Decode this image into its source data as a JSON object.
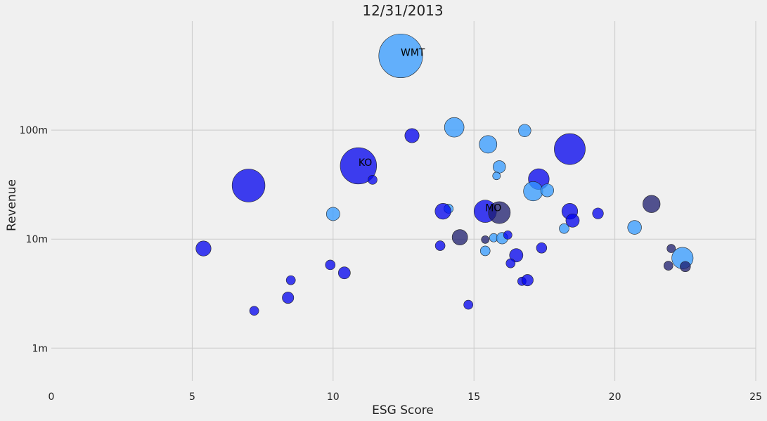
{
  "chart_data": {
    "type": "scatter",
    "title": "12/31/2013",
    "xlabel": "ESG Score",
    "ylabel": "Revenue",
    "xlim": [
      0,
      25
    ],
    "ylim": [
      500000,
      1000000000
    ],
    "y_scale": "log",
    "grid": true,
    "x_ticks": [
      0,
      5,
      10,
      15,
      20,
      25
    ],
    "x_tick_labels": [
      "0",
      "5",
      "10",
      "15",
      "20",
      "25"
    ],
    "y_ticks": [
      1000000,
      10000000,
      100000000
    ],
    "y_tick_labels": [
      "1m",
      "10m",
      "100m"
    ],
    "colors": {
      "light": "#3399ff",
      "blue": "#0000ee",
      "dark": "#1c1c6e",
      "grid": "#cbcbcb",
      "background": "#f0f0f0"
    },
    "points": [
      {
        "x": 12.4,
        "y": 480000000,
        "size": 1600,
        "color": "light",
        "label": "WMT"
      },
      {
        "x": 10.9,
        "y": 47000000,
        "size": 1100,
        "color": "blue",
        "label": "KO"
      },
      {
        "x": 15.4,
        "y": 18000000,
        "size": 420,
        "color": "blue",
        "label": "MO"
      },
      {
        "x": 7.0,
        "y": 31000000,
        "size": 900,
        "color": "blue"
      },
      {
        "x": 18.4,
        "y": 67000000,
        "size": 800,
        "color": "blue"
      },
      {
        "x": 14.3,
        "y": 106000000,
        "size": 320,
        "color": "light"
      },
      {
        "x": 15.5,
        "y": 74000000,
        "size": 260,
        "color": "light"
      },
      {
        "x": 16.8,
        "y": 99000000,
        "size": 130,
        "color": "light"
      },
      {
        "x": 12.8,
        "y": 89000000,
        "size": 170,
        "color": "blue"
      },
      {
        "x": 15.9,
        "y": 46000000,
        "size": 130,
        "color": "light"
      },
      {
        "x": 15.8,
        "y": 38000000,
        "size": 50,
        "color": "light"
      },
      {
        "x": 11.4,
        "y": 35000000,
        "size": 70,
        "color": "blue"
      },
      {
        "x": 17.3,
        "y": 35500000,
        "size": 360,
        "color": "blue"
      },
      {
        "x": 17.1,
        "y": 27500000,
        "size": 310,
        "color": "light"
      },
      {
        "x": 17.6,
        "y": 28000000,
        "size": 140,
        "color": "light"
      },
      {
        "x": 21.3,
        "y": 21000000,
        "size": 250,
        "color": "dark"
      },
      {
        "x": 14.1,
        "y": 19000000,
        "size": 70,
        "color": "light"
      },
      {
        "x": 13.9,
        "y": 18000000,
        "size": 210,
        "color": "blue"
      },
      {
        "x": 10.0,
        "y": 17000000,
        "size": 150,
        "color": "light"
      },
      {
        "x": 15.9,
        "y": 17500000,
        "size": 400,
        "color": "dark"
      },
      {
        "x": 18.4,
        "y": 18000000,
        "size": 210,
        "color": "blue"
      },
      {
        "x": 19.4,
        "y": 17200000,
        "size": 100,
        "color": "blue"
      },
      {
        "x": 18.5,
        "y": 14800000,
        "size": 150,
        "color": "blue"
      },
      {
        "x": 20.7,
        "y": 12800000,
        "size": 160,
        "color": "light"
      },
      {
        "x": 18.2,
        "y": 12500000,
        "size": 80,
        "color": "light"
      },
      {
        "x": 14.5,
        "y": 10400000,
        "size": 200,
        "color": "dark"
      },
      {
        "x": 15.4,
        "y": 9900000,
        "size": 50,
        "color": "dark"
      },
      {
        "x": 15.7,
        "y": 10300000,
        "size": 60,
        "color": "light"
      },
      {
        "x": 16.0,
        "y": 10200000,
        "size": 110,
        "color": "light"
      },
      {
        "x": 16.2,
        "y": 10900000,
        "size": 60,
        "color": "blue"
      },
      {
        "x": 13.8,
        "y": 8700000,
        "size": 80,
        "color": "blue"
      },
      {
        "x": 15.4,
        "y": 7800000,
        "size": 80,
        "color": "light"
      },
      {
        "x": 16.5,
        "y": 7100000,
        "size": 150,
        "color": "blue"
      },
      {
        "x": 17.4,
        "y": 8300000,
        "size": 90,
        "color": "blue"
      },
      {
        "x": 5.4,
        "y": 8200000,
        "size": 190,
        "color": "blue"
      },
      {
        "x": 22.0,
        "y": 8200000,
        "size": 60,
        "color": "dark"
      },
      {
        "x": 22.4,
        "y": 6700000,
        "size": 380,
        "color": "light"
      },
      {
        "x": 21.9,
        "y": 5700000,
        "size": 70,
        "color": "dark"
      },
      {
        "x": 22.5,
        "y": 5600000,
        "size": 90,
        "color": "dark"
      },
      {
        "x": 9.9,
        "y": 5800000,
        "size": 80,
        "color": "blue"
      },
      {
        "x": 10.4,
        "y": 4900000,
        "size": 120,
        "color": "blue"
      },
      {
        "x": 16.3,
        "y": 6000000,
        "size": 70,
        "color": "blue"
      },
      {
        "x": 8.5,
        "y": 4200000,
        "size": 70,
        "color": "blue"
      },
      {
        "x": 16.7,
        "y": 4100000,
        "size": 60,
        "color": "blue"
      },
      {
        "x": 16.9,
        "y": 4200000,
        "size": 110,
        "color": "blue"
      },
      {
        "x": 8.4,
        "y": 2900000,
        "size": 110,
        "color": "blue"
      },
      {
        "x": 7.2,
        "y": 2200000,
        "size": 70,
        "color": "blue"
      },
      {
        "x": 14.8,
        "y": 2500000,
        "size": 70,
        "color": "blue"
      }
    ]
  }
}
